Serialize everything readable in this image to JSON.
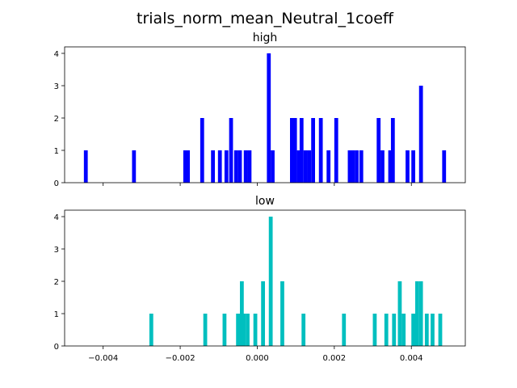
{
  "figure": {
    "suptitle": "trials_norm_mean_Neutral_1coeff"
  },
  "chart_data": [
    {
      "type": "bar",
      "title": "high",
      "color": "#0000ff",
      "xlim": [
        -0.005,
        0.0054
      ],
      "ylim": [
        0,
        4.2
      ],
      "yticks": [
        0,
        1,
        2,
        3,
        4
      ],
      "ytick_labels": [
        "0",
        "1",
        "2",
        "3",
        "4"
      ],
      "xticks": [
        -0.004,
        -0.002,
        0.0,
        0.002,
        0.004
      ],
      "xtick_labels": [],
      "bin_width": 0.0001,
      "x": [
        -0.00445,
        -0.0032,
        -0.00187,
        -0.0018,
        -0.00143,
        -0.00115,
        -0.00097,
        -0.0008,
        -0.00068,
        -0.00055,
        -0.00045,
        -0.0003,
        -0.0002,
        0.0003,
        0.0004,
        0.0009,
        0.00098,
        0.00108,
        0.00115,
        0.00125,
        0.00135,
        0.00145,
        0.00165,
        0.00185,
        0.00205,
        0.0024,
        0.00248,
        0.00258,
        0.0027,
        0.00315,
        0.00325,
        0.00345,
        0.00352,
        0.0039,
        0.00405,
        0.00425,
        0.00485
      ],
      "values": [
        1,
        1,
        1,
        1,
        2,
        1,
        1,
        1,
        2,
        1,
        1,
        1,
        1,
        4,
        1,
        2,
        2,
        1,
        2,
        1,
        1,
        2,
        2,
        1,
        2,
        1,
        1,
        1,
        1,
        2,
        1,
        1,
        2,
        1,
        1,
        3,
        1
      ]
    },
    {
      "type": "bar",
      "title": "low",
      "color": "#00bfbf",
      "xlim": [
        -0.005,
        0.0054
      ],
      "ylim": [
        0,
        4.2
      ],
      "yticks": [
        0,
        1,
        2,
        3,
        4
      ],
      "ytick_labels": [
        "0",
        "1",
        "2",
        "3",
        "4"
      ],
      "xticks": [
        -0.004,
        -0.002,
        0.0,
        0.002,
        0.004
      ],
      "xtick_labels": [
        "−0.004",
        "−0.002",
        "0.000",
        "0.002",
        "0.004"
      ],
      "bin_width": 0.0001,
      "x": [
        -0.00275,
        -0.00135,
        -0.00085,
        -0.0005,
        -0.0004,
        -0.00035,
        -0.00025,
        -5e-05,
        0.00015,
        0.00035,
        0.00065,
        0.0012,
        0.00225,
        0.00305,
        0.00335,
        0.00355,
        0.0037,
        0.0038,
        0.00405,
        0.00415,
        0.00425,
        0.0044,
        0.00455,
        0.00475
      ],
      "values": [
        1,
        1,
        1,
        1,
        2,
        1,
        1,
        1,
        2,
        4,
        2,
        1,
        1,
        1,
        1,
        1,
        2,
        1,
        1,
        2,
        2,
        1,
        1,
        1
      ]
    }
  ]
}
